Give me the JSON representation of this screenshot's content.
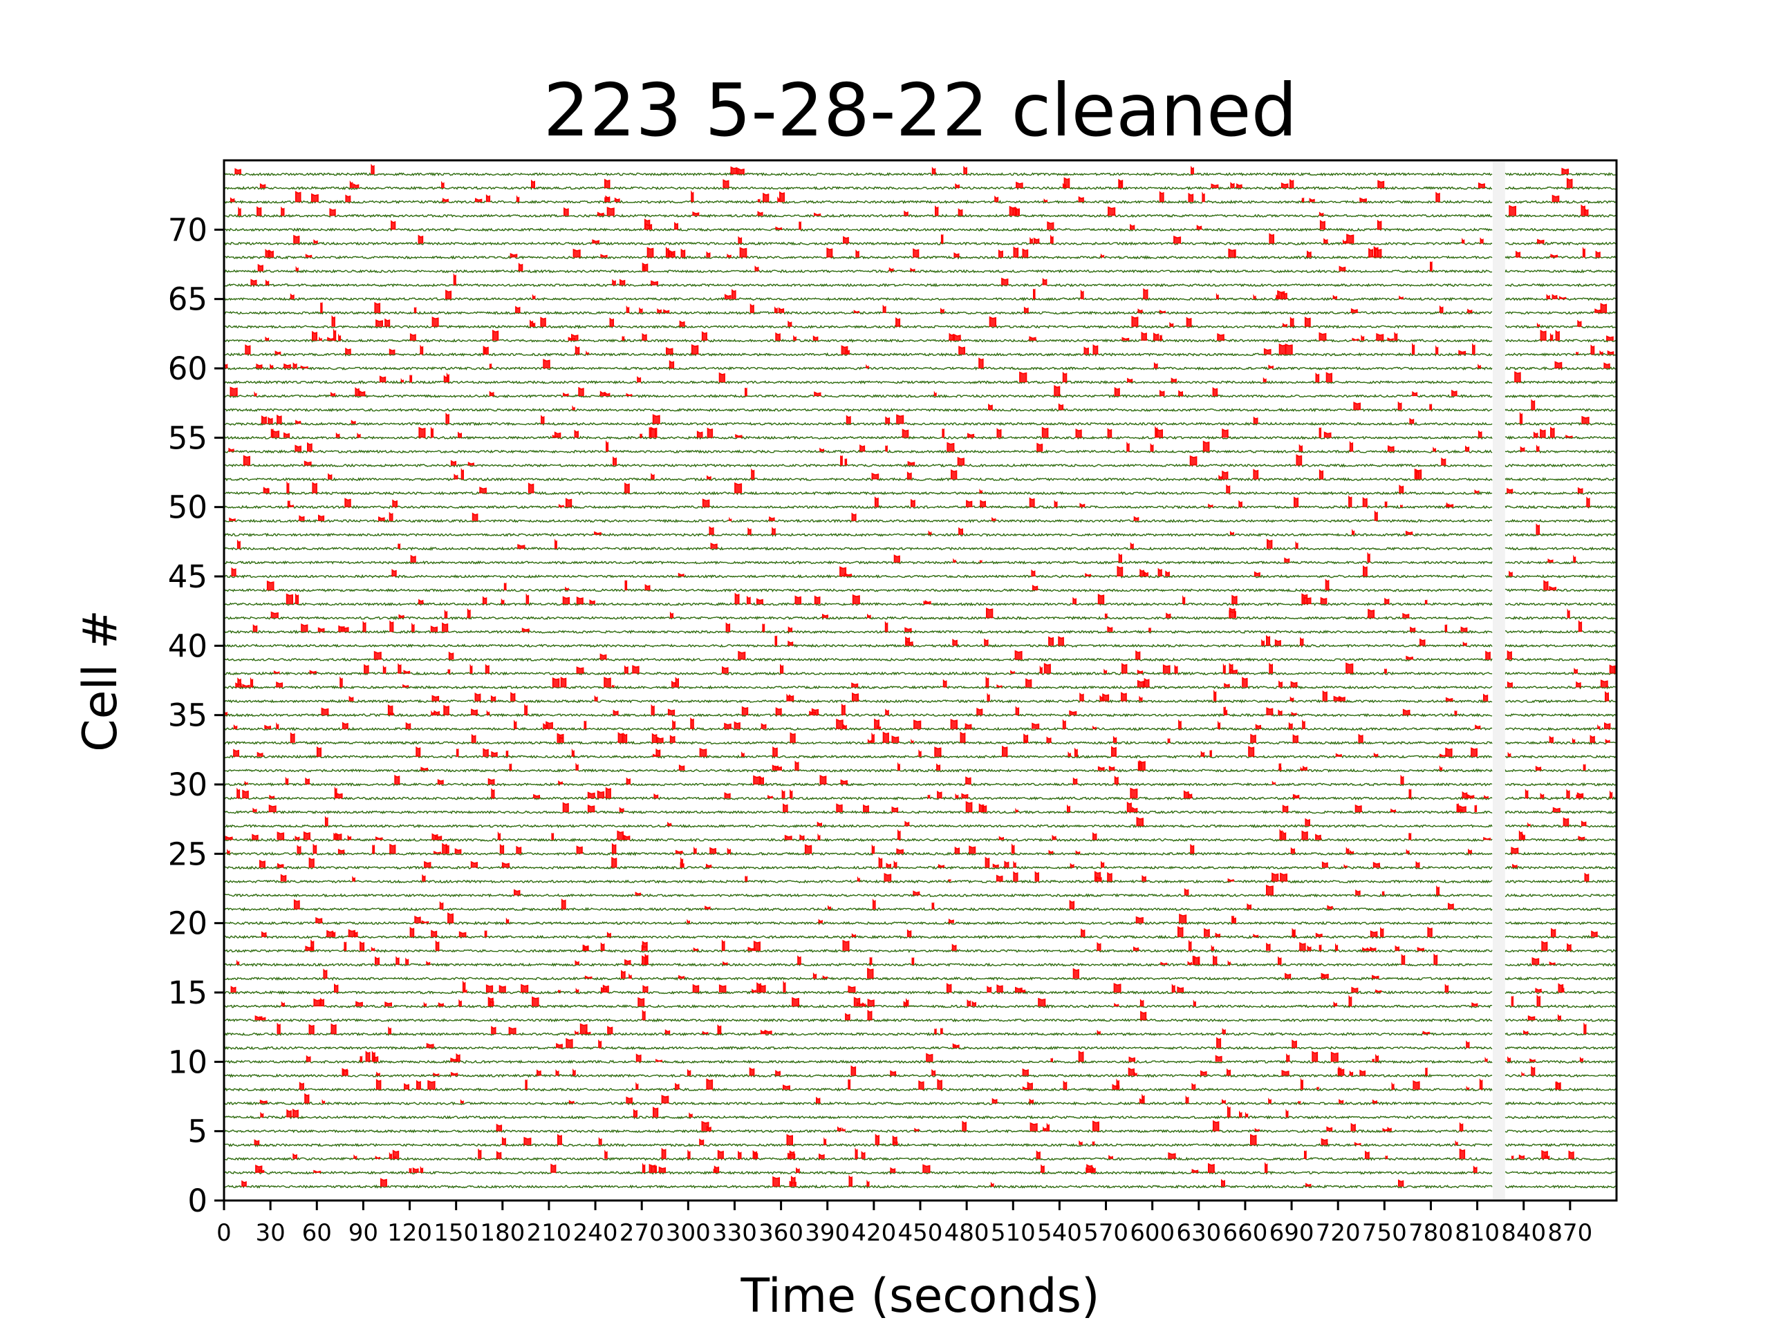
{
  "chart_data": {
    "type": "line",
    "title": "223  5-28-22 cleaned",
    "xlabel": "Time (seconds)",
    "ylabel": "Cell #",
    "xlim": [
      0,
      900
    ],
    "ylim": [
      0,
      75
    ],
    "xticks": [
      0,
      30,
      60,
      90,
      120,
      150,
      180,
      210,
      240,
      270,
      300,
      330,
      360,
      390,
      420,
      450,
      480,
      510,
      540,
      570,
      600,
      630,
      660,
      690,
      720,
      750,
      780,
      810,
      840,
      870
    ],
    "xtick_labels": [
      "0",
      "30",
      "60",
      "90",
      "120",
      "150",
      "180",
      "210",
      "240",
      "270",
      "300",
      "330",
      "360",
      "390",
      "420",
      "450",
      "480",
      "510",
      "540",
      "570",
      "600",
      "630",
      "660",
      "690",
      "720",
      "750",
      "780",
      "810",
      "840",
      "870"
    ],
    "yticks": [
      0,
      5,
      10,
      15,
      20,
      25,
      30,
      35,
      40,
      45,
      50,
      55,
      60,
      65,
      70
    ],
    "ytick_labels": [
      "0",
      "5",
      "10",
      "15",
      "20",
      "25",
      "30",
      "35",
      "40",
      "45",
      "50",
      "55",
      "60",
      "65",
      "70"
    ],
    "cells": 74,
    "gap_seconds": [
      820,
      828
    ],
    "grid": false,
    "legend": "none",
    "colors": {
      "trace": "#2e6b0e",
      "event": "#ff0000",
      "axes": "#000000",
      "background": "#ffffff"
    }
  }
}
